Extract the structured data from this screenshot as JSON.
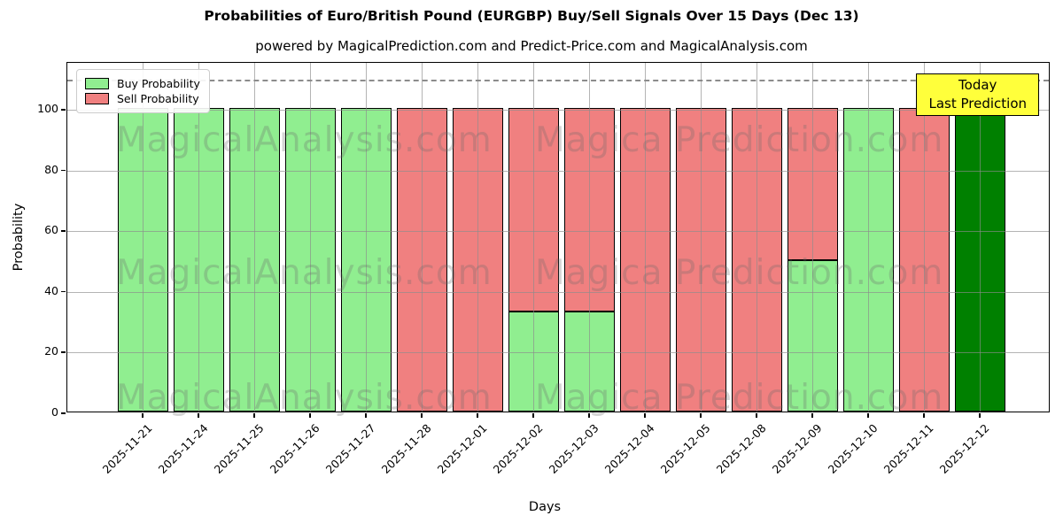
{
  "chart_data": {
    "type": "bar",
    "stacked": true,
    "title": "Probabilities of Euro/British Pound (EURGBP) Buy/Sell Signals Over 15 Days (Dec 13)",
    "subtitle": "powered by MagicalPrediction.com and Predict-Price.com and MagicalAnalysis.com",
    "xlabel": "Days",
    "ylabel": "Probability",
    "categories": [
      "2025-11-21",
      "2025-11-24",
      "2025-11-25",
      "2025-11-26",
      "2025-11-27",
      "2025-11-28",
      "2025-12-01",
      "2025-12-02",
      "2025-12-03",
      "2025-12-04",
      "2025-12-05",
      "2025-12-08",
      "2025-12-09",
      "2025-12-10",
      "2025-12-11",
      "2025-12-12"
    ],
    "series": [
      {
        "name": "Buy Probability",
        "color": "#90EE90",
        "values": [
          100,
          100,
          100,
          100,
          100,
          0,
          0,
          33,
          33,
          0,
          0,
          0,
          50,
          100,
          0,
          100
        ]
      },
      {
        "name": "Sell Probability",
        "color": "#F08080",
        "values": [
          0,
          0,
          0,
          0,
          0,
          100,
          100,
          67,
          67,
          100,
          100,
          100,
          50,
          0,
          100,
          0
        ]
      }
    ],
    "today_index": 15,
    "today_buy_color": "#008000",
    "bar_edge_color": "#000000",
    "ylim": [
      0,
      115.6
    ],
    "yticks": [
      0,
      20,
      40,
      60,
      80,
      100
    ],
    "grid": true,
    "legend_position": "upper left",
    "dashed_line_y": 110,
    "dashed_line_color": "#8c8c8c",
    "grid_color": "#8c8c8c",
    "annotation": {
      "line1": "Today",
      "line2": "Last Prediction",
      "bg_color": "#FFFF3B",
      "border_color": "#000000"
    },
    "watermarks": {
      "left_text": "MagicalAnalysis.com",
      "right_text": "Magica Prediction.com",
      "color": "rgba(105,105,105,0.28)"
    }
  }
}
